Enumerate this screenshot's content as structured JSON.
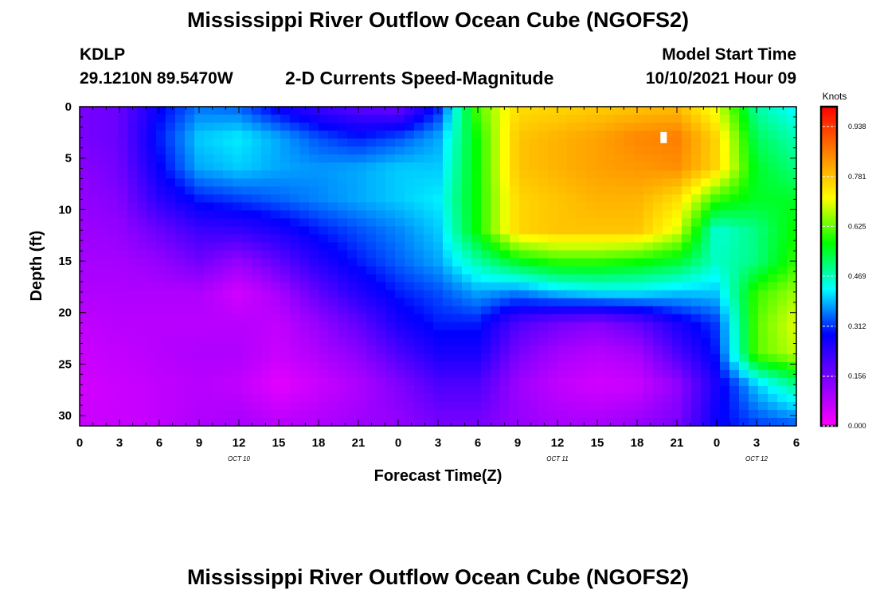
{
  "title_top": "Mississippi River Outflow Ocean Cube (NGOFS2)",
  "title_bottom": "Mississippi River Outflow Ocean Cube (NGOFS2)",
  "station": {
    "id": "KDLP",
    "coords": "29.1210N  89.5470W"
  },
  "plot_title": "2-D Currents Speed-Magnitude",
  "model": {
    "label": "Model Start Time",
    "value": "10/10/2021 Hour 09"
  },
  "chart_data": {
    "type": "heatmap",
    "title": "2-D Currents Speed-Magnitude",
    "xlabel": "Forecast Time(Z)",
    "ylabel": "Depth (ft)",
    "x_ticks": [
      "0",
      "3",
      "6",
      "9",
      "12",
      "15",
      "18",
      "21",
      "0",
      "3",
      "6",
      "9",
      "12",
      "15",
      "18",
      "21",
      "0",
      "3",
      "6"
    ],
    "date_labels": [
      {
        "label": "OCT 10",
        "at_hour": 12
      },
      {
        "label": "OCT 11",
        "at_hour": 36
      },
      {
        "label": "OCT 12",
        "at_hour": 51
      }
    ],
    "xlim_hours": [
      0,
      54
    ],
    "y_ticks": [
      "0",
      "5",
      "10",
      "15",
      "20",
      "25",
      "30"
    ],
    "ylim_ft": [
      0,
      31
    ],
    "y_inverted": true,
    "colorbar": {
      "title": "Knots",
      "tick_labels": [
        "0.000",
        "0.156",
        "0.312",
        "0.469",
        "0.625",
        "0.781",
        "0.938"
      ],
      "range": [
        0,
        1.0
      ],
      "colors": [
        "#ff00ff",
        "#8000ff",
        "#0000ff",
        "#00ffff",
        "#00ff00",
        "#ffff00",
        "#ff8000",
        "#ff0000"
      ]
    },
    "value_grid": {
      "hours": [
        0,
        3,
        6,
        9,
        12,
        15,
        18,
        21,
        24,
        27,
        30,
        33,
        36,
        39,
        42,
        45,
        48,
        51,
        54
      ],
      "depths": [
        0,
        3,
        6,
        9,
        12,
        15,
        18,
        21,
        24,
        27,
        31
      ],
      "values": [
        [
          0.15,
          0.17,
          0.28,
          0.35,
          0.34,
          0.27,
          0.22,
          0.18,
          0.16,
          0.3,
          0.62,
          0.75,
          0.76,
          0.77,
          0.78,
          0.79,
          0.7,
          0.48,
          0.42
        ],
        [
          0.15,
          0.17,
          0.3,
          0.4,
          0.42,
          0.38,
          0.33,
          0.3,
          0.33,
          0.38,
          0.58,
          0.78,
          0.8,
          0.82,
          0.85,
          0.86,
          0.76,
          0.52,
          0.47
        ],
        [
          0.13,
          0.16,
          0.28,
          0.38,
          0.4,
          0.38,
          0.37,
          0.38,
          0.4,
          0.4,
          0.58,
          0.78,
          0.8,
          0.82,
          0.83,
          0.84,
          0.76,
          0.55,
          0.5
        ],
        [
          0.12,
          0.14,
          0.24,
          0.3,
          0.32,
          0.34,
          0.36,
          0.38,
          0.4,
          0.42,
          0.58,
          0.76,
          0.78,
          0.8,
          0.8,
          0.75,
          0.6,
          0.55,
          0.55
        ],
        [
          0.11,
          0.12,
          0.17,
          0.22,
          0.23,
          0.26,
          0.3,
          0.33,
          0.36,
          0.4,
          0.58,
          0.76,
          0.78,
          0.78,
          0.78,
          0.7,
          0.45,
          0.5,
          0.58
        ],
        [
          0.1,
          0.1,
          0.12,
          0.16,
          0.12,
          0.18,
          0.25,
          0.3,
          0.34,
          0.38,
          0.48,
          0.56,
          0.6,
          0.6,
          0.58,
          0.55,
          0.46,
          0.5,
          0.6
        ],
        [
          0.09,
          0.09,
          0.09,
          0.09,
          0.05,
          0.1,
          0.18,
          0.25,
          0.3,
          0.33,
          0.38,
          0.36,
          0.4,
          0.42,
          0.42,
          0.4,
          0.4,
          0.6,
          0.66
        ],
        [
          0.07,
          0.08,
          0.08,
          0.08,
          0.08,
          0.07,
          0.12,
          0.18,
          0.26,
          0.3,
          0.3,
          0.2,
          0.16,
          0.14,
          0.18,
          0.26,
          0.32,
          0.62,
          0.7
        ],
        [
          0.06,
          0.07,
          0.08,
          0.09,
          0.09,
          0.06,
          0.09,
          0.13,
          0.2,
          0.26,
          0.26,
          0.15,
          0.1,
          0.08,
          0.1,
          0.2,
          0.3,
          0.62,
          0.68
        ],
        [
          0.05,
          0.06,
          0.07,
          0.08,
          0.07,
          0.03,
          0.06,
          0.09,
          0.14,
          0.2,
          0.2,
          0.11,
          0.07,
          0.05,
          0.06,
          0.12,
          0.26,
          0.4,
          0.5
        ],
        [
          0.06,
          0.06,
          0.07,
          0.09,
          0.1,
          0.08,
          0.09,
          0.11,
          0.12,
          0.15,
          0.15,
          0.12,
          0.1,
          0.1,
          0.12,
          0.15,
          0.28,
          0.32,
          0.33
        ]
      ]
    },
    "marker_annotation": {
      "hour": 44,
      "depth_ft": 3
    }
  }
}
